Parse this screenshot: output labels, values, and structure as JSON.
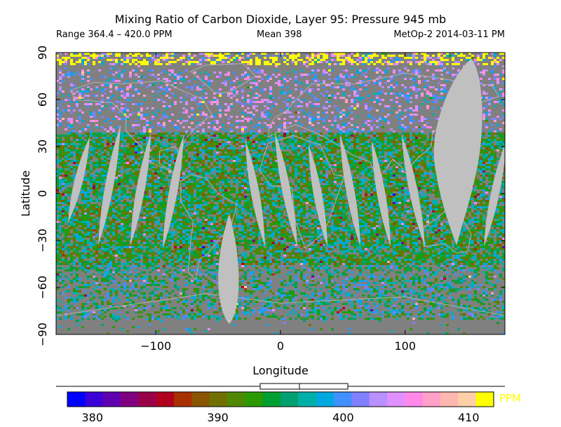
{
  "title": "Mixing Ratio of Carbon Dioxide, Layer 95: Pressure 945 mb",
  "header": {
    "range": "Range 364.4 – 420.0 PPM",
    "mean": "Mean 398",
    "source": "MetOp-2 2014-03-11 PM"
  },
  "chart_data": {
    "type": "heatmap",
    "title": "Mixing Ratio of Carbon Dioxide, Layer 95: Pressure 945 mb",
    "xlabel": "Longitude",
    "ylabel": "Latitude",
    "xlim": [
      -180,
      180
    ],
    "ylim": [
      -90,
      90
    ],
    "xticks": [
      -100,
      0,
      100
    ],
    "yticks": [
      -90,
      -60,
      -30,
      0,
      30,
      60,
      90
    ],
    "no_data_color": "#808080",
    "gap_color": "#c0c0c0",
    "coastline_color": "#a9a9a9",
    "colorbar": {
      "unit": "PPM",
      "range": [
        378,
        412
      ],
      "ticks": [
        380,
        390,
        400,
        410
      ],
      "colors": [
        "#0000ff",
        "#3a00d8",
        "#6000b0",
        "#800080",
        "#98004a",
        "#b00020",
        "#a83000",
        "#8a5400",
        "#707000",
        "#508800",
        "#2a9a00",
        "#00a030",
        "#00a070",
        "#00b0a8",
        "#00a8e0",
        "#4090ff",
        "#8080ff",
        "#b890ff",
        "#e090ff",
        "#ff88e8",
        "#ffa0c8",
        "#ffb8b0",
        "#ffd0a8",
        "#ffff00"
      ]
    }
  }
}
